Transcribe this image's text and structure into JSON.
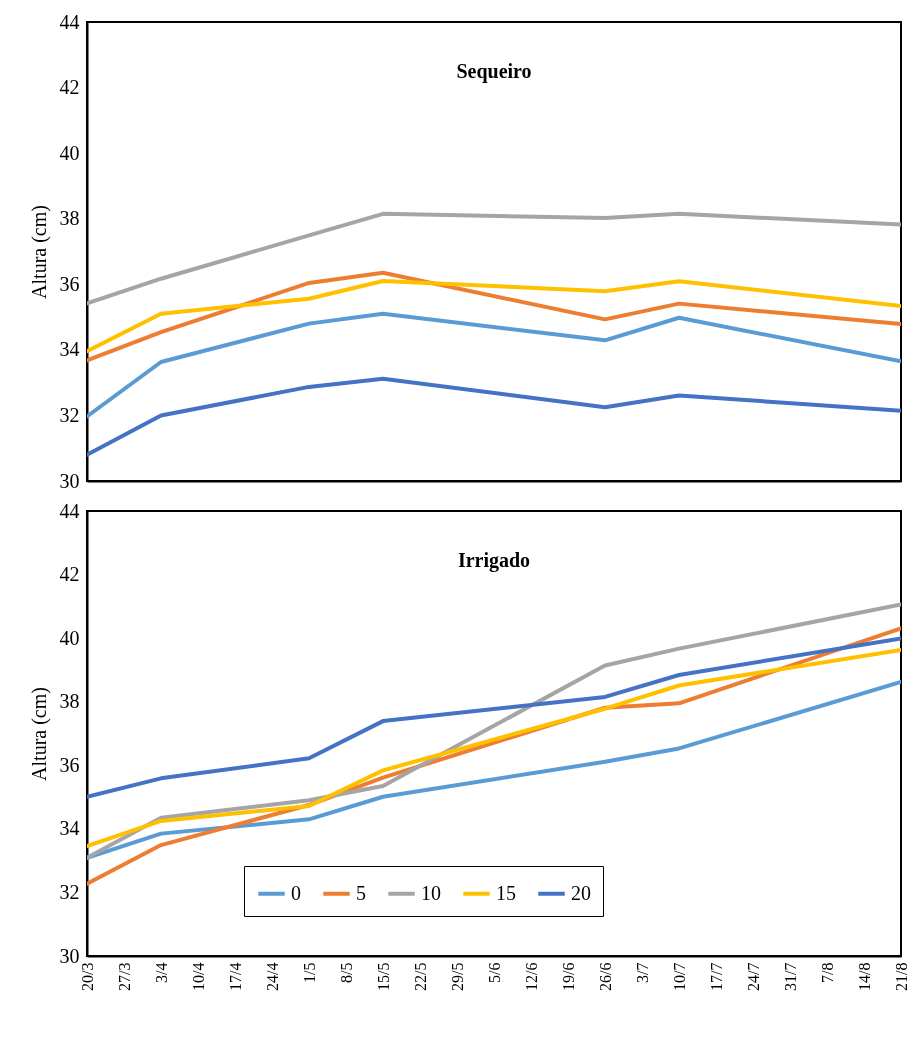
{
  "chart_data": [
    {
      "type": "line",
      "title": "Sequeiro",
      "ylabel": "Altura (cm)",
      "x": [
        "--03-20",
        "--04-03",
        "--05-01",
        "--05-15",
        "--06-26",
        "--07-10",
        "--08-21"
      ],
      "series": [
        {
          "color": "#5b9bd5",
          "values": [
            31.97,
            33.63,
            34.8,
            35.1,
            34.29,
            34.98,
            33.65
          ]
        },
        {
          "color": "#ed7d31",
          "values": [
            33.68,
            34.54,
            36.04,
            36.35,
            34.93,
            35.41,
            34.79
          ]
        },
        {
          "color": "#a5a5a5",
          "values": [
            35.42,
            36.17,
            37.49,
            38.15,
            38.02,
            38.15,
            37.82
          ]
        },
        {
          "color": "#ffc000",
          "values": [
            33.96,
            35.1,
            35.56,
            36.1,
            35.79,
            36.09,
            35.34
          ]
        },
        {
          "color": "#4472c4",
          "values": [
            30.8,
            32.0,
            32.87,
            33.12,
            32.25,
            32.61,
            32.14
          ]
        }
      ],
      "xlim": [
        "--03-20",
        "--08-21"
      ],
      "xticks": [
        {
          "value": "--03-20",
          "label": "20/3"
        },
        {
          "value": "--03-27",
          "label": "27/3"
        },
        {
          "value": "--04-03",
          "label": "3/4"
        },
        {
          "value": "--04-10",
          "label": "10/4"
        },
        {
          "value": "--04-17",
          "label": "17/4"
        },
        {
          "value": "--04-24",
          "label": "24/4"
        },
        {
          "value": "--05-01",
          "label": "1/5"
        },
        {
          "value": "--05-08",
          "label": "8/5"
        },
        {
          "value": "--05-15",
          "label": "15/5"
        },
        {
          "value": "--05-22",
          "label": "22/5"
        },
        {
          "value": "--05-29",
          "label": "29/5"
        },
        {
          "value": "--06-05",
          "label": "5/6"
        },
        {
          "value": "--06-12",
          "label": "12/6"
        },
        {
          "value": "--06-19",
          "label": "19/6"
        },
        {
          "value": "--06-26",
          "label": "26/6"
        },
        {
          "value": "--07-03",
          "label": "3/7"
        },
        {
          "value": "--07-10",
          "label": "10/7"
        },
        {
          "value": "--07-17",
          "label": "17/7"
        },
        {
          "value": "--07-24",
          "label": "24/7"
        },
        {
          "value": "--07-31",
          "label": "31/7"
        },
        {
          "value": "--08-07",
          "label": "7/8"
        },
        {
          "value": "--08-14",
          "label": "14/8"
        },
        {
          "value": "--08-21",
          "label": "21/8"
        }
      ],
      "ylim": [
        30,
        44
      ],
      "yticks": [
        30,
        32,
        34,
        36,
        38,
        40,
        42,
        44
      ],
      "tick_labels": "y",
      "grid": false,
      "legend": false
    },
    {
      "type": "line",
      "title": "Irrigado",
      "ylabel": "Altura (cm)",
      "x": [
        "--03-20",
        "--04-03",
        "--05-01",
        "--05-15",
        "--06-26",
        "--07-10",
        "--08-21"
      ],
      "series": [
        {
          "name": "0",
          "color": "#5b9bd5",
          "values": [
            33.09,
            33.85,
            34.3,
            35.01,
            36.11,
            36.53,
            38.62
          ]
        },
        {
          "name": "5",
          "color": "#ed7d31",
          "values": [
            32.27,
            33.49,
            34.75,
            35.61,
            37.81,
            37.95,
            40.31
          ]
        },
        {
          "name": "10",
          "color": "#a5a5a5",
          "values": [
            33.09,
            34.35,
            34.9,
            35.35,
            39.14,
            39.67,
            41.06
          ]
        },
        {
          "name": "15",
          "color": "#ffc000",
          "values": [
            33.46,
            34.25,
            34.72,
            35.84,
            37.78,
            38.51,
            39.63
          ]
        },
        {
          "name": "20",
          "color": "#4472c4",
          "values": [
            35.01,
            35.59,
            36.22,
            37.39,
            38.15,
            38.84,
            39.99
          ]
        }
      ],
      "xlim": [
        "--03-20",
        "--08-21"
      ],
      "xticks": [
        {
          "value": "--03-20",
          "label": "20/3"
        },
        {
          "value": "--03-27",
          "label": "27/3"
        },
        {
          "value": "--04-03",
          "label": "3/4"
        },
        {
          "value": "--04-10",
          "label": "10/4"
        },
        {
          "value": "--04-17",
          "label": "17/4"
        },
        {
          "value": "--04-24",
          "label": "24/4"
        },
        {
          "value": "--05-01",
          "label": "1/5"
        },
        {
          "value": "--05-08",
          "label": "8/5"
        },
        {
          "value": "--05-15",
          "label": "15/5"
        },
        {
          "value": "--05-22",
          "label": "22/5"
        },
        {
          "value": "--05-29",
          "label": "29/5"
        },
        {
          "value": "--06-05",
          "label": "5/6"
        },
        {
          "value": "--06-12",
          "label": "12/6"
        },
        {
          "value": "--06-19",
          "label": "19/6"
        },
        {
          "value": "--06-26",
          "label": "26/6"
        },
        {
          "value": "--07-03",
          "label": "3/7"
        },
        {
          "value": "--07-10",
          "label": "10/7"
        },
        {
          "value": "--07-17",
          "label": "17/7"
        },
        {
          "value": "--07-24",
          "label": "24/7"
        },
        {
          "value": "--07-31",
          "label": "31/7"
        },
        {
          "value": "--08-07",
          "label": "7/8"
        },
        {
          "value": "--08-14",
          "label": "14/8"
        },
        {
          "value": "--08-21",
          "label": "21/8"
        }
      ],
      "ylim": [
        30,
        44
      ],
      "yticks": [
        30,
        32,
        34,
        36,
        38,
        40,
        42,
        44
      ],
      "grid": false,
      "legend": "bottom"
    }
  ]
}
